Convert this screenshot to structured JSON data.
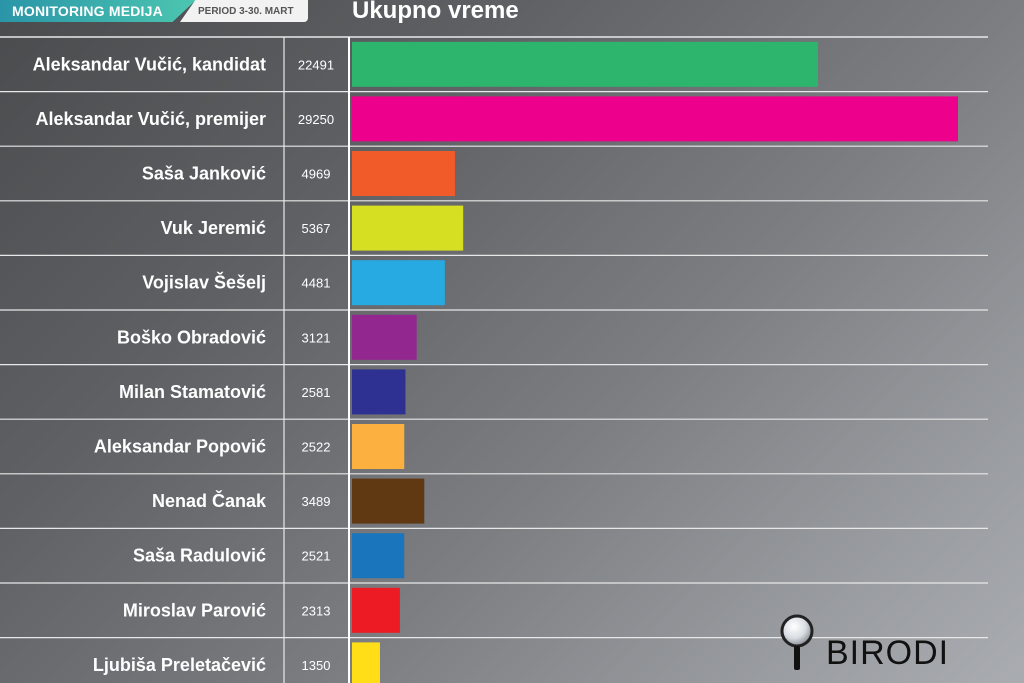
{
  "header": {
    "badge_title": "MONITORING MEDIJA",
    "badge_period": "PERIOD 3-30. MART"
  },
  "logo": {
    "text": "BIRODI",
    "icon": "magnifier-icon"
  },
  "chart_data": {
    "type": "bar",
    "orientation": "horizontal",
    "title": "Ukupno vreme",
    "categories": [
      "Aleksandar Vučić,  kandidat",
      "Aleksandar Vučić, premijer",
      "Saša Janković",
      "Vuk Jeremić",
      "Vojislav Šešelj",
      "Boško Obradović",
      "Milan Stamatović",
      "Aleksandar Popović",
      "Nenad Čanak",
      "Saša Radulović",
      "Miroslav Parović",
      "Ljubiša Preletačević"
    ],
    "values": [
      22491,
      29250,
      4969,
      5367,
      4481,
      3121,
      2581,
      2522,
      3489,
      2521,
      2313,
      1350
    ],
    "value_labels": [
      "22491",
      "29250",
      "4969",
      "5367",
      "4481",
      "3121",
      "2581",
      "2522",
      "3489",
      "2521",
      "2313",
      "1350"
    ],
    "colors": [
      "#2db56e",
      "#ec008c",
      "#f15a29",
      "#d7df23",
      "#27aae1",
      "#92278f",
      "#2e3192",
      "#fbb040",
      "#603913",
      "#1b75bc",
      "#ed1c24",
      "#ffde17"
    ],
    "xlim": [
      0,
      30000
    ],
    "grid": true,
    "legend": "none"
  }
}
